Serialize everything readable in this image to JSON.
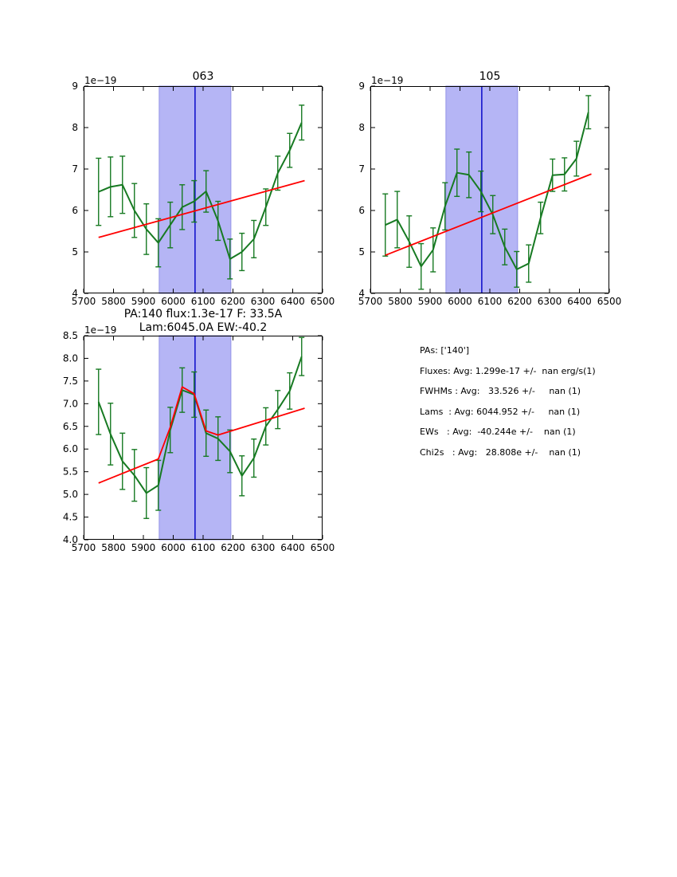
{
  "colors": {
    "series_green": "#177a22",
    "fit_red": "#ff0000",
    "vline_blue": "#1414cc",
    "band_fill": "#b5b5f5",
    "band_edge": "#9494e8",
    "axis": "#000000",
    "background": "#ffffff"
  },
  "chart_data": [
    {
      "type": "line",
      "title": "063",
      "offset_label": "1e−19",
      "xlim": [
        5700,
        6500
      ],
      "ylim": [
        4,
        9
      ],
      "xticks": [
        5700,
        5800,
        5900,
        6000,
        6100,
        6200,
        6300,
        6400,
        6500
      ],
      "xtick_labels": [
        "5700",
        "5800",
        "5900",
        "6000",
        "6100",
        "6200",
        "6300",
        "6400",
        "6500"
      ],
      "yticks": [
        4,
        5,
        6,
        7,
        8,
        9
      ],
      "ytick_labels": [
        "4",
        "5",
        "6",
        "7",
        "8",
        "9"
      ],
      "grid": false,
      "legend": null,
      "band": [
        5953,
        6193
      ],
      "vline": 6073,
      "series": [
        {
          "name": "spectrum-063",
          "color_key": "series_green",
          "x": [
            5750,
            5790,
            5830,
            5870,
            5910,
            5950,
            5990,
            6030,
            6070,
            6110,
            6150,
            6190,
            6230,
            6270,
            6310,
            6350,
            6390,
            6430
          ],
          "y": [
            6.45,
            6.57,
            6.62,
            6.0,
            5.55,
            5.22,
            5.65,
            6.08,
            6.22,
            6.46,
            5.75,
            4.83,
            5.0,
            5.31,
            6.08,
            6.9,
            7.45,
            8.12
          ],
          "yerr": [
            0.81,
            0.72,
            0.69,
            0.65,
            0.61,
            0.58,
            0.55,
            0.54,
            0.5,
            0.5,
            0.47,
            0.48,
            0.45,
            0.45,
            0.44,
            0.41,
            0.41,
            0.42
          ]
        },
        {
          "name": "continuum-fit-063",
          "color_key": "fit_red",
          "points": [
            [
              5750,
              5.35
            ],
            [
              6440,
              6.72
            ]
          ]
        }
      ]
    },
    {
      "type": "line",
      "title": "105",
      "offset_label": "1e−19",
      "xlim": [
        5700,
        6500
      ],
      "ylim": [
        4,
        9
      ],
      "xticks": [
        5700,
        5800,
        5900,
        6000,
        6100,
        6200,
        6300,
        6400,
        6500
      ],
      "xtick_labels": [
        "5700",
        "5800",
        "5900",
        "6000",
        "6100",
        "6200",
        "6300",
        "6400",
        "6500"
      ],
      "yticks": [
        4,
        5,
        6,
        7,
        8,
        9
      ],
      "ytick_labels": [
        "4",
        "5",
        "6",
        "7",
        "8",
        "9"
      ],
      "grid": false,
      "legend": null,
      "band": [
        5953,
        6193
      ],
      "vline": 6073,
      "series": [
        {
          "name": "spectrum-105",
          "color_key": "series_green",
          "x": [
            5750,
            5790,
            5830,
            5870,
            5910,
            5950,
            5990,
            6030,
            6070,
            6110,
            6150,
            6190,
            6230,
            6270,
            6310,
            6350,
            6390,
            6430
          ],
          "y": [
            5.65,
            5.78,
            5.25,
            4.65,
            5.05,
            6.1,
            6.91,
            6.86,
            6.46,
            5.9,
            5.12,
            4.58,
            4.72,
            5.82,
            6.85,
            6.87,
            7.25,
            8.37
          ],
          "yerr": [
            0.75,
            0.68,
            0.62,
            0.55,
            0.53,
            0.57,
            0.57,
            0.55,
            0.49,
            0.46,
            0.43,
            0.43,
            0.45,
            0.38,
            0.39,
            0.4,
            0.42,
            0.4
          ]
        },
        {
          "name": "continuum-fit-105",
          "color_key": "fit_red",
          "points": [
            [
              5750,
              4.92
            ],
            [
              6440,
              6.88
            ]
          ]
        }
      ]
    },
    {
      "type": "line",
      "title": "PA:140 flux:1.3e-17 F: 33.5A",
      "title_line2": "Lam:6045.0A EW:-40.2",
      "offset_label": "1e−19",
      "xlim": [
        5700,
        6500
      ],
      "ylim": [
        4.0,
        8.5
      ],
      "xticks": [
        5700,
        5800,
        5900,
        6000,
        6100,
        6200,
        6300,
        6400,
        6500
      ],
      "xtick_labels": [
        "5700",
        "5800",
        "5900",
        "6000",
        "6100",
        "6200",
        "6300",
        "6400",
        "6500"
      ],
      "yticks": [
        4.0,
        4.5,
        5.0,
        5.5,
        6.0,
        6.5,
        7.0,
        7.5,
        8.0,
        8.5
      ],
      "ytick_labels": [
        "4.0",
        "4.5",
        "5.0",
        "5.5",
        "6.0",
        "6.5",
        "7.0",
        "7.5",
        "8.0",
        "8.5"
      ],
      "grid": false,
      "legend": null,
      "band": [
        5953,
        6193
      ],
      "vline": 6073,
      "series": [
        {
          "name": "spectrum-combined",
          "color_key": "series_green",
          "x": [
            5750,
            5790,
            5830,
            5870,
            5910,
            5950,
            5990,
            6030,
            6070,
            6110,
            6150,
            6190,
            6230,
            6270,
            6310,
            6350,
            6390,
            6430
          ],
          "y": [
            7.04,
            6.33,
            5.73,
            5.42,
            5.03,
            5.2,
            6.42,
            7.3,
            7.2,
            6.35,
            6.23,
            5.95,
            5.41,
            5.8,
            6.5,
            6.87,
            7.28,
            8.04
          ],
          "yerr": [
            0.72,
            0.68,
            0.62,
            0.57,
            0.56,
            0.55,
            0.5,
            0.49,
            0.5,
            0.51,
            0.48,
            0.47,
            0.44,
            0.42,
            0.41,
            0.42,
            0.4,
            0.42
          ]
        },
        {
          "name": "gaussian-fit",
          "color_key": "fit_red",
          "points": [
            [
              5750,
              5.25
            ],
            [
              5950,
              5.78
            ],
            [
              5990,
              6.48
            ],
            [
              6030,
              7.37
            ],
            [
              6070,
              7.22
            ],
            [
              6110,
              6.4
            ],
            [
              6150,
              6.31
            ],
            [
              6440,
              6.9
            ]
          ]
        }
      ]
    }
  ],
  "stats_panel": {
    "lines": [
      "PAs: ['140']",
      "Fluxes: Avg: 1.299e-17 +/-  nan erg/s(1)",
      "FWHMs : Avg:   33.526 +/-     nan (1)",
      "Lams  : Avg: 6044.952 +/-     nan (1)",
      "EWs   : Avg:  -40.244e +/-    nan (1)",
      "Chi2s   : Avg:   28.808e +/-    nan (1)"
    ]
  }
}
